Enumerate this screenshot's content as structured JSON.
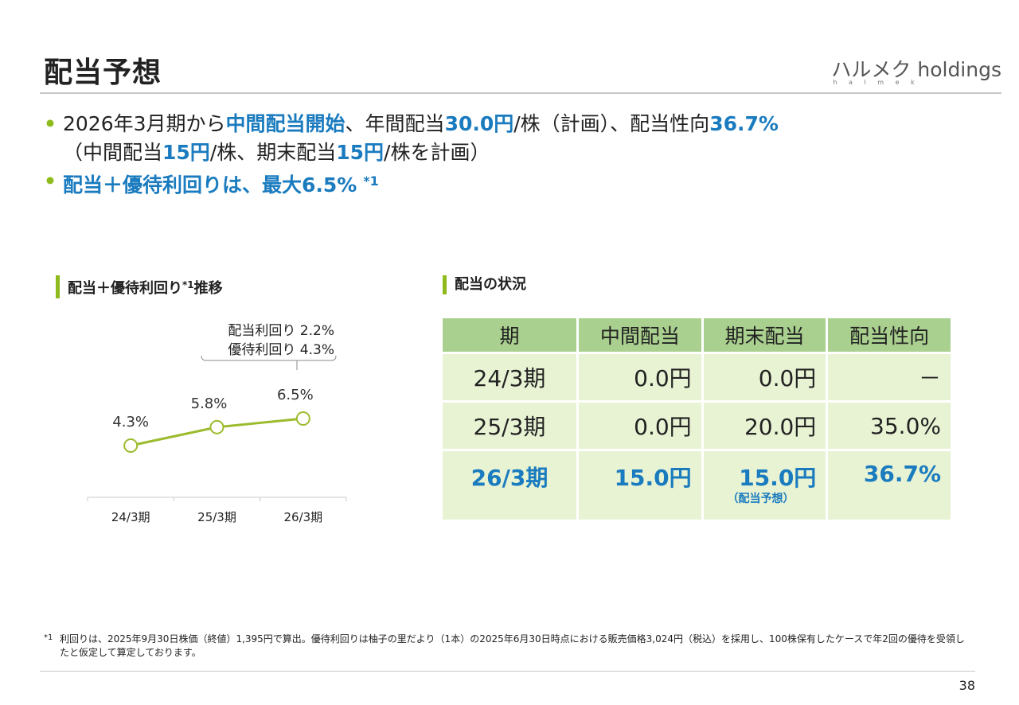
{
  "header": {
    "title": "配当予想",
    "logo_main": "ハルメク holdings",
    "logo_sub": "h a l m e k"
  },
  "bullets": [
    {
      "line1": [
        {
          "t": "2026年3月期から",
          "hl": false
        },
        {
          "t": "中間配当開始",
          "hl": true
        },
        {
          "t": "、年間配当",
          "hl": false
        },
        {
          "t": "30.0円",
          "hl": true
        },
        {
          "t": "/株（計画）、配当性向",
          "hl": false
        },
        {
          "t": "36.7%",
          "hl": true
        }
      ],
      "line2": [
        {
          "t": "（中間配当",
          "hl": false
        },
        {
          "t": "15円",
          "hl": true
        },
        {
          "t": "/株、期末配当",
          "hl": false
        },
        {
          "t": "15円",
          "hl": true
        },
        {
          "t": "/株を計画）",
          "hl": false
        }
      ]
    },
    {
      "text": "配当＋優待利回りは、最大6.5%",
      "sup": "*1"
    }
  ],
  "chart_section": {
    "label": "配当＋優待利回り",
    "label_sup": "*1",
    "label_suffix": "推移"
  },
  "chart_data": {
    "type": "line",
    "title": "配当＋優待利回り*1推移",
    "categories": [
      "24/3期",
      "25/3期",
      "26/3期"
    ],
    "values": [
      4.3,
      5.8,
      6.5
    ],
    "data_labels": [
      "4.3%",
      "5.8%",
      "6.5%"
    ],
    "unit": "%",
    "ylim": [
      0,
      8
    ],
    "grid": false,
    "annotation": {
      "target_category": "26/3期",
      "lines": [
        "配当利回り 2.2%",
        "優待利回り 4.3%"
      ]
    },
    "color": "#9bbb2d"
  },
  "table_section": {
    "label": "配当の状況"
  },
  "dividend_table": {
    "headers": [
      "期",
      "中間配当",
      "期末配当",
      "配当性向"
    ],
    "rows": [
      {
        "period": "24/3期",
        "interim": "0.0円",
        "final": "0.0円",
        "payout": "－",
        "highlight": false
      },
      {
        "period": "25/3期",
        "interim": "0.0円",
        "final": "20.0円",
        "payout": "35.0%",
        "highlight": false
      },
      {
        "period": "26/3期",
        "interim": "15.0円",
        "final": "15.0円",
        "final_note": "（配当予想）",
        "payout": "36.7%",
        "highlight": true
      }
    ]
  },
  "footnote": {
    "mark": "*1",
    "text": "利回りは、2025年9月30日株価（終値）1,395円で算出。優待利回りは柚子の里だより（1本）の2025年6月30日時点における販売価格3,024円（税込）を採用し、100株保有したケースで年2回の優待を受領したと仮定して算定しております。"
  },
  "page_number": "38",
  "colors": {
    "accent_green": "#8fba1c",
    "highlight_blue": "#1a7bbf",
    "table_header": "#a9d08e",
    "table_cell": "#e8f3d4"
  }
}
